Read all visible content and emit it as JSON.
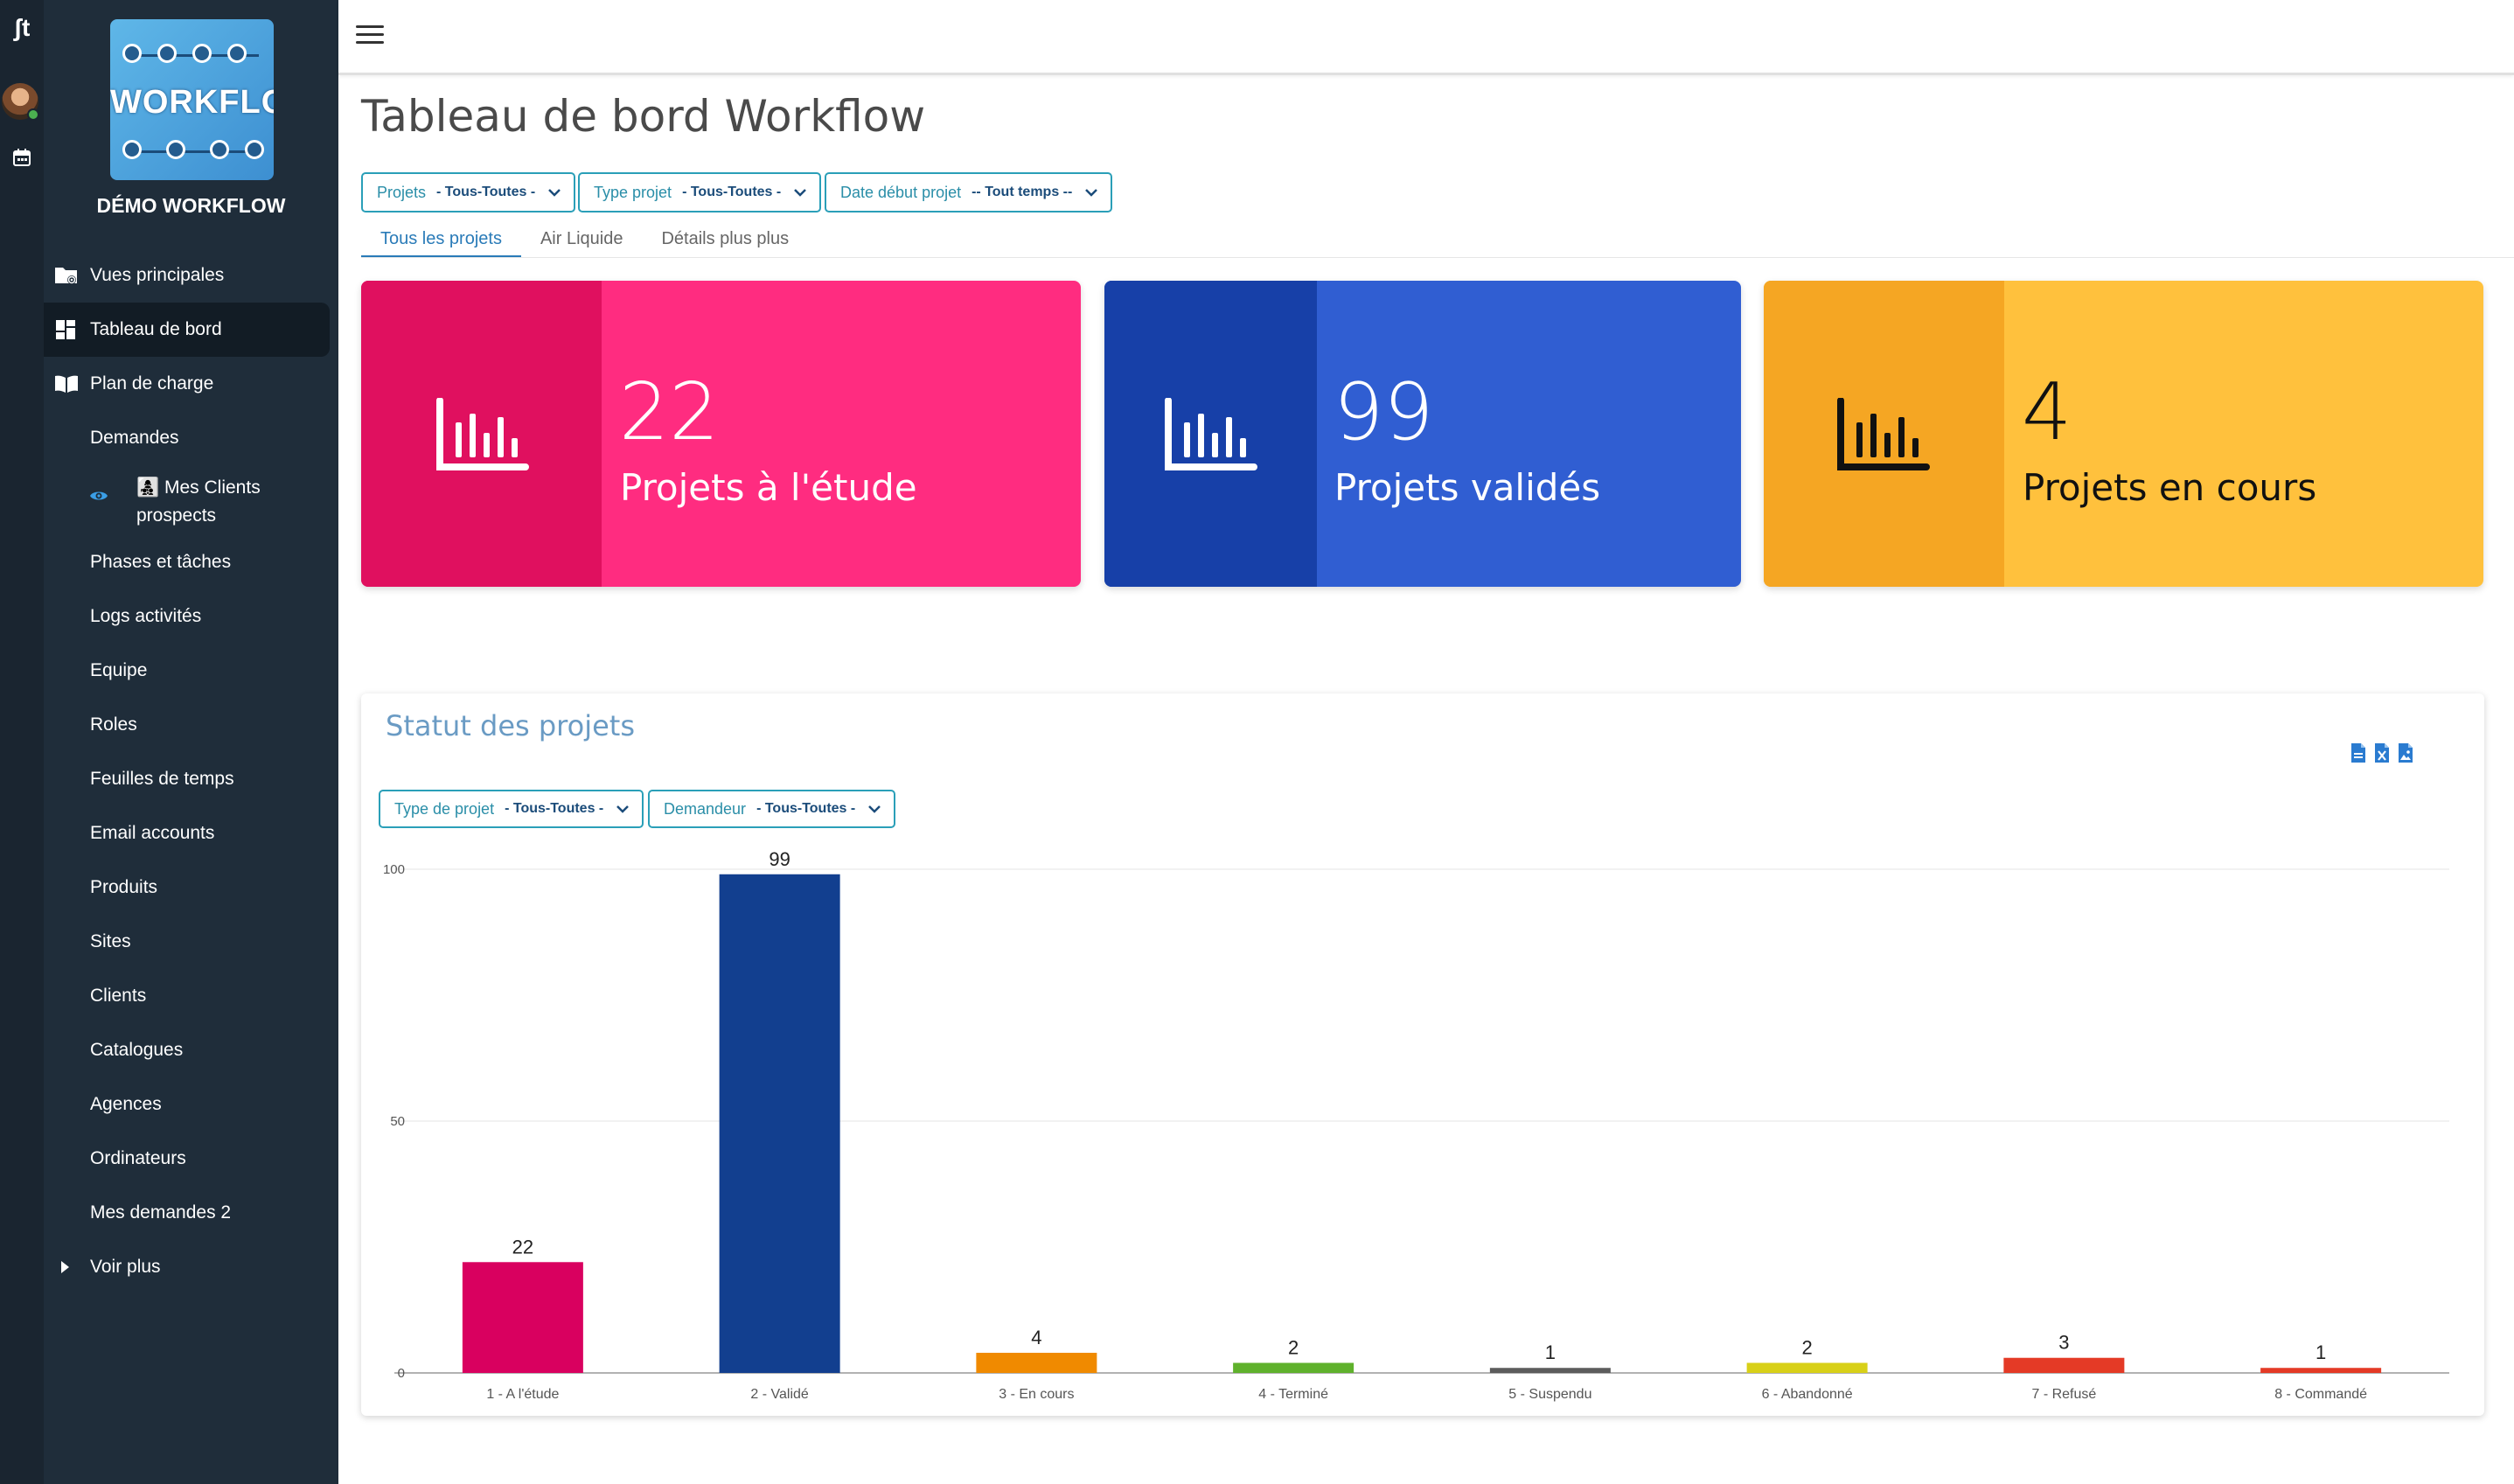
{
  "app": {
    "name": "DÉMO WORKFLOW",
    "logo_text": "WORKFLOW",
    "rail_logo": "ʃt"
  },
  "sidebar": {
    "items": [
      {
        "label": "Vues principales",
        "icon": "folder-eye-icon"
      },
      {
        "label": "Tableau de bord",
        "icon": "dashboard-icon",
        "active": true
      },
      {
        "label": "Plan de charge",
        "icon": "book-open-icon"
      },
      {
        "label": "Demandes"
      },
      {
        "label": "Mes Clients prospects",
        "line1": "Mes Clients",
        "line2": "prospects",
        "emoji": "👩‍👧‍👦"
      },
      {
        "label": "Phases et tâches"
      },
      {
        "label": "Logs activités"
      },
      {
        "label": "Equipe"
      },
      {
        "label": "Roles"
      },
      {
        "label": "Feuilles de temps"
      },
      {
        "label": "Email accounts"
      },
      {
        "label": "Produits"
      },
      {
        "label": "Sites"
      },
      {
        "label": "Clients"
      },
      {
        "label": "Catalogues"
      },
      {
        "label": "Agences"
      },
      {
        "label": "Ordinateurs"
      },
      {
        "label": "Mes demandes 2"
      },
      {
        "label": "Voir plus"
      }
    ]
  },
  "page": {
    "title": "Tableau de bord Workflow"
  },
  "filters": [
    {
      "label": "Projets",
      "value": "- Tous-Toutes -"
    },
    {
      "label": "Type projet",
      "value": "- Tous-Toutes -"
    },
    {
      "label": "Date début projet",
      "value": "-- Tout temps --"
    }
  ],
  "tabs": [
    {
      "label": "Tous les projets",
      "active": true
    },
    {
      "label": "Air Liquide"
    },
    {
      "label": "Détails plus plus"
    }
  ],
  "kpis": [
    {
      "value": "22",
      "label": "Projets à l'étude",
      "dark": "#e0105f",
      "light": "#ff2c80",
      "text": "#ffffff"
    },
    {
      "value": "99",
      "label": "Projets validés",
      "dark": "#1740a8",
      "light": "#305ed2",
      "text": "#ffffff"
    },
    {
      "value": "4",
      "label": "Projets en cours",
      "dark": "#f5a623",
      "light": "#ffc13d",
      "text": "#111111"
    }
  ],
  "status_card": {
    "title": "Statut des projets",
    "filters": [
      {
        "label": "Type de projet",
        "value": "- Tous-Toutes -"
      },
      {
        "label": "Demandeur",
        "value": "- Tous-Toutes -"
      }
    ],
    "export_icons": [
      "pdf-export-icon",
      "excel-export-icon",
      "image-export-icon"
    ]
  },
  "chart_data": {
    "type": "bar",
    "title": "Statut des projets",
    "categories": [
      "1 - A l'étude",
      "2 - Validé",
      "3 - En cours",
      "4 - Terminé",
      "5 - Suspendu",
      "6 - Abandonné",
      "7 - Refusé",
      "8 - Commandé"
    ],
    "values": [
      22,
      99,
      4,
      2,
      1,
      2,
      3,
      1
    ],
    "colors": [
      "#d9005f",
      "#123f8f",
      "#f08a00",
      "#5fb12c",
      "#5c5c5c",
      "#d8d018",
      "#e43a26",
      "#e43a26"
    ],
    "ylim": [
      0,
      100
    ],
    "yticks": [
      0,
      50,
      100
    ],
    "grid": true,
    "xlabel": "",
    "ylabel": ""
  },
  "colors": {
    "sidebar": "#1f2d3a",
    "rail": "#1a2530",
    "accent": "#2a9fb8"
  }
}
